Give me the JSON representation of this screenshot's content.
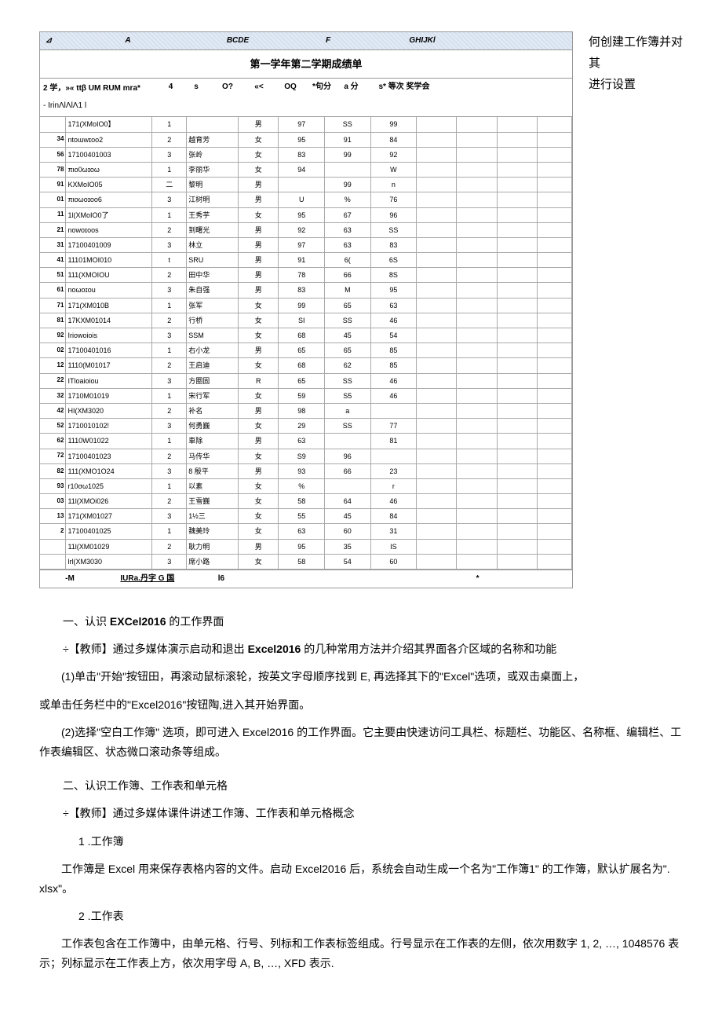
{
  "side_text_1": "何创建工作簿并对其",
  "side_text_2": "进行设置",
  "col_headers": {
    "A": "A",
    "BCDE": "BCDE",
    "F": "F",
    "GHIJKl": "GHIJKl"
  },
  "title_row": "第一学年第二学期成绩单",
  "sub_header": {
    "c1": "2 学，»« ttβ UM RUM mra*",
    "c1b": "- IrinΛlΛlΛ1 l",
    "c2": "4",
    "c3": "s",
    "c4": "O?",
    "c5": "«<",
    "c6": "OQ",
    "c7": "*句分",
    "c8": "a 分",
    "c9": "s* 等次 奖学会"
  },
  "rows": [
    [
      "",
      "171(XMoIO0】",
      "1",
      "",
      "男",
      "97",
      "SS",
      "99",
      "",
      "",
      "",
      ""
    ],
    [
      "34",
      "ntoɯwɪoo2",
      "2",
      "越育芳",
      "女",
      "95",
      "91",
      "84",
      "",
      "",
      "",
      ""
    ],
    [
      "56",
      "17100401003",
      "3",
      "张岭",
      "女",
      "83",
      "99",
      "92",
      "",
      "",
      "",
      ""
    ],
    [
      "78",
      "πιo0ωɪoω",
      "1",
      "李丽华",
      "女",
      "94",
      "",
      "W",
      "",
      "",
      "",
      ""
    ],
    [
      "91",
      "KXMoIO05",
      "二",
      "黎明",
      "男",
      "",
      "99",
      "n",
      "",
      "",
      "",
      ""
    ],
    [
      "01",
      "πιoωoɪoo6",
      "3",
      "江树明",
      "男",
      "U",
      "%",
      "76",
      "",
      "",
      "",
      ""
    ],
    [
      "11",
      "1l(XMoIO0了",
      "1",
      "王秀芋",
      "女",
      "95",
      "67",
      "96",
      "",
      "",
      "",
      ""
    ],
    [
      "21",
      "nowoɪoos",
      "2",
      "到曙光",
      "男",
      "92",
      "63",
      "SS",
      "",
      "",
      "",
      ""
    ],
    [
      "31",
      "17100401009",
      "3",
      "林立",
      "男",
      "97",
      "63",
      "83",
      "",
      "",
      "",
      ""
    ],
    [
      "41",
      "11101MOI010",
      "t",
      "SRU",
      "男",
      "91",
      "6(",
      "6S",
      "",
      "",
      "",
      ""
    ],
    [
      "51",
      "111(XMOIOU",
      "2",
      "田中华",
      "男",
      "78",
      "66",
      "8S",
      "",
      "",
      "",
      ""
    ],
    [
      "61",
      "noωoɪou",
      "3",
      "朱自强",
      "男",
      "83",
      "M",
      "95",
      "",
      "",
      "",
      ""
    ],
    [
      "71",
      "171(XM010B",
      "1",
      "张军",
      "女",
      "99",
      "65",
      "63",
      "",
      "",
      "",
      ""
    ],
    [
      "81",
      "17KXM01014",
      "2",
      "行桥",
      "女",
      "SI",
      "SS",
      "46",
      "",
      "",
      "",
      ""
    ],
    [
      "92",
      "Iriowoiois",
      "3",
      "SSM",
      "女",
      "68",
      "45",
      "54",
      "",
      "",
      "",
      ""
    ],
    [
      "02",
      "17100401016",
      "1",
      "右小龙",
      "男",
      "65",
      "65",
      "85",
      "",
      "",
      "",
      ""
    ],
    [
      "12",
      "1110(M01017",
      "2",
      "王启迪",
      "女",
      "68",
      "62",
      "85",
      "",
      "",
      "",
      ""
    ],
    [
      "22",
      "ITloaioiou",
      "3",
      "方圈固",
      "R",
      "65",
      "SS",
      "46",
      "",
      "",
      "",
      ""
    ],
    [
      "32",
      "1710M01019",
      "1",
      "宋行军",
      "女",
      "59",
      "S5",
      "46",
      "",
      "",
      "",
      ""
    ],
    [
      "42",
      "HI(XM3020",
      "2",
      "补名",
      "男",
      "98",
      "a",
      "",
      "",
      "",
      "",
      ""
    ],
    [
      "52",
      "1710010102!",
      "3",
      "何勇巍",
      "女",
      "29",
      "SS",
      "77",
      "",
      "",
      "",
      ""
    ],
    [
      "62",
      "1110W01022",
      "1",
      "車除",
      "男",
      "63",
      "",
      "81",
      "",
      "",
      "",
      ""
    ],
    [
      "72",
      "17100401023",
      "2",
      "马传华",
      "女",
      "S9",
      "96",
      "",
      "",
      "",
      "",
      ""
    ],
    [
      "82",
      "111(XMO1O24",
      "3",
      "8 殷平",
      "男",
      "93",
      "66",
      "23",
      "",
      "",
      "",
      ""
    ],
    [
      "93",
      "r10σω1025",
      "1",
      "以素",
      "女",
      "%",
      "",
      "r",
      "",
      "",
      "",
      ""
    ],
    [
      "03",
      "11l(XMOi026",
      "2",
      "王雪巍",
      "女",
      "58",
      "64",
      "46",
      "",
      "",
      "",
      ""
    ],
    [
      "13",
      "171(XM01027",
      "3",
      "1½三",
      "女",
      "55",
      "45",
      "84",
      "",
      "",
      "",
      ""
    ],
    [
      "2",
      "17100401025",
      "1",
      "魏美玲",
      "女",
      "63",
      "60",
      "31",
      "",
      "",
      "",
      ""
    ],
    [
      "",
      "11l(XM01029",
      "2",
      "耿力明",
      "男",
      "95",
      "35",
      "IS",
      "",
      "",
      "",
      ""
    ],
    [
      "",
      "lrl(XM3030",
      "3",
      "席小路",
      "女",
      "58",
      "54",
      "60",
      "",
      "",
      "",
      ""
    ]
  ],
  "footer": {
    "left": "-M",
    "mid1": "IURa.丹字 G 国",
    "mid2": "l6",
    "right": "*"
  },
  "h1": "一、认识",
  "h1b": "EXCel2016",
  "h1c": "的工作界面",
  "t1": "÷【教师】通过多媒体演示启动和退出",
  "t1b": "Excel2016",
  "t1c": "的几种常用方法并介绍其界面各介区域的名称和功能",
  "p1": "(1)单击\"开始\"按钮田，再滚动鼠标滚轮，按英文字母顺序找到 E, 再选择其下的\"Excel\"选项，或双击桌面上，",
  "p1b": "或单击任务栏中的\"Excel2016\"按钮陶,进入其开始界面。",
  "p2": "(2)选择\"空白工作簿\" 选项，即可进入 Excel2016 的工作界面。它主要由快速访问工具栏、标题栏、功能区、名称框、编辑栏、工作表编辑区、状态微口滚动条等组成。",
  "h2": "二、认识工作簿、工作表和单元格",
  "t2": "÷【教师】通过多媒体课件讲述工作簿、工作表和单元格概念",
  "n1": "1 .工作簿",
  "p3": "工作簿是 Excel 用来保存表格内容的文件。启动 Excel2016 后，系统会自动生成一个名为\"工作簿1\" 的工作簿，默认扩展名为\". xlsx\"。",
  "n2": "2 .工作表",
  "p4": "工作表包含在工作簿中，由单元格、行号、列标和工作表标签组成。行号显示在工作表的左侧，依次用数字 1, 2, …, 1048576 表示；列标显示在工作表上方，依次用字母 A, B, …, XFD 表示."
}
